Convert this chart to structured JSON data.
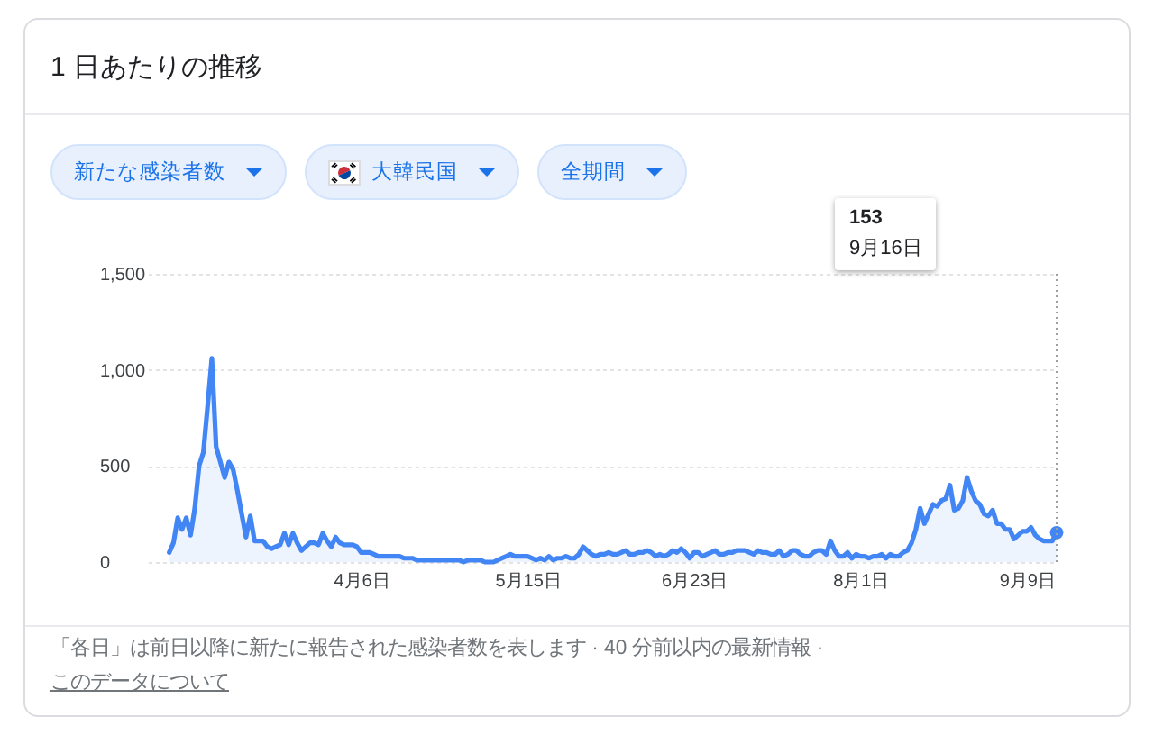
{
  "chart_data": {
    "type": "area",
    "title": "1 日あたりの推移",
    "x": [
      "--02-21",
      "--02-22",
      "--02-23",
      "--02-24",
      "--02-25",
      "--02-26",
      "--02-27",
      "--02-28",
      "--02-29",
      "--03-01",
      "--03-02",
      "--03-03",
      "--03-04",
      "--03-05",
      "--03-06",
      "--03-07",
      "--03-08",
      "--03-09",
      "--03-10",
      "--03-11",
      "--03-12",
      "--03-13",
      "--03-14",
      "--03-15",
      "--03-16",
      "--03-17",
      "--03-18",
      "--03-19",
      "--03-20",
      "--03-21",
      "--03-22",
      "--03-23",
      "--03-24",
      "--03-25",
      "--03-26",
      "--03-27",
      "--03-28",
      "--03-29",
      "--03-30",
      "--03-31",
      "--04-01",
      "--04-02",
      "--04-03",
      "--04-04",
      "--04-05",
      "--04-06",
      "--04-07",
      "--04-08",
      "--04-09",
      "--04-10",
      "--04-11",
      "--04-12",
      "--04-13",
      "--04-14",
      "--04-15",
      "--04-16",
      "--04-17",
      "--04-18",
      "--04-19",
      "--04-20",
      "--04-21",
      "--04-22",
      "--04-23",
      "--04-24",
      "--04-25",
      "--04-26",
      "--04-27",
      "--04-28",
      "--04-29",
      "--04-30",
      "--05-01",
      "--05-02",
      "--05-03",
      "--05-04",
      "--05-05",
      "--05-06",
      "--05-07",
      "--05-08",
      "--05-09",
      "--05-10",
      "--05-11",
      "--05-12",
      "--05-13",
      "--05-14",
      "--05-15",
      "--05-16",
      "--05-17",
      "--05-18",
      "--05-19",
      "--05-20",
      "--05-21",
      "--05-22",
      "--05-23",
      "--05-24",
      "--05-25",
      "--05-26",
      "--05-27",
      "--05-28",
      "--05-29",
      "--05-30",
      "--05-31",
      "--06-01",
      "--06-02",
      "--06-03",
      "--06-04",
      "--06-05",
      "--06-06",
      "--06-07",
      "--06-08",
      "--06-09",
      "--06-10",
      "--06-11",
      "--06-12",
      "--06-13",
      "--06-14",
      "--06-15",
      "--06-16",
      "--06-17",
      "--06-18",
      "--06-19",
      "--06-20",
      "--06-21",
      "--06-22",
      "--06-23",
      "--06-24",
      "--06-25",
      "--06-26",
      "--06-27",
      "--06-28",
      "--06-29",
      "--06-30",
      "--07-01",
      "--07-02",
      "--07-03",
      "--07-04",
      "--07-05",
      "--07-06",
      "--07-07",
      "--07-08",
      "--07-09",
      "--07-10",
      "--07-11",
      "--07-12",
      "--07-13",
      "--07-14",
      "--07-15",
      "--07-16",
      "--07-17",
      "--07-18",
      "--07-19",
      "--07-20",
      "--07-21",
      "--07-22",
      "--07-23",
      "--07-24",
      "--07-25",
      "--07-26",
      "--07-27",
      "--07-28",
      "--07-29",
      "--07-30",
      "--07-31",
      "--08-01",
      "--08-02",
      "--08-03",
      "--08-04",
      "--08-05",
      "--08-06",
      "--08-07",
      "--08-08",
      "--08-09",
      "--08-10",
      "--08-11",
      "--08-12",
      "--08-13",
      "--08-14",
      "--08-15",
      "--08-16",
      "--08-17",
      "--08-18",
      "--08-19",
      "--08-20",
      "--08-21",
      "--08-22",
      "--08-23",
      "--08-24",
      "--08-25",
      "--08-26",
      "--08-27",
      "--08-28",
      "--08-29",
      "--08-30",
      "--08-31",
      "--09-01",
      "--09-02",
      "--09-03",
      "--09-04",
      "--09-05",
      "--09-06",
      "--09-07",
      "--09-08",
      "--09-09",
      "--09-10",
      "--09-11",
      "--09-12",
      "--09-13",
      "--09-14",
      "--09-15",
      "--09-16"
    ],
    "series": [
      {
        "color": "#4285f4",
        "values": [
          50,
          100,
          230,
          170,
          230,
          140,
          280,
          500,
          570,
          810,
          1060,
          600,
          520,
          440,
          520,
          480,
          370,
          250,
          130,
          240,
          110,
          110,
          110,
          80,
          70,
          80,
          90,
          150,
          90,
          150,
          100,
          60,
          80,
          100,
          100,
          90,
          150,
          110,
          80,
          130,
          100,
          90,
          90,
          90,
          80,
          50,
          50,
          50,
          40,
          30,
          30,
          30,
          30,
          30,
          30,
          20,
          20,
          20,
          10,
          10,
          10,
          10,
          10,
          10,
          10,
          10,
          10,
          10,
          10,
          0,
          10,
          10,
          10,
          10,
          0,
          0,
          0,
          10,
          20,
          30,
          40,
          30,
          30,
          30,
          30,
          20,
          10,
          20,
          10,
          30,
          10,
          20,
          20,
          30,
          20,
          20,
          40,
          80,
          60,
          40,
          30,
          40,
          40,
          50,
          40,
          40,
          50,
          60,
          40,
          40,
          50,
          50,
          60,
          50,
          30,
          40,
          30,
          40,
          60,
          50,
          70,
          50,
          20,
          50,
          50,
          30,
          40,
          50,
          60,
          40,
          40,
          50,
          50,
          60,
          60,
          60,
          50,
          40,
          60,
          50,
          50,
          40,
          40,
          60,
          30,
          40,
          60,
          60,
          40,
          30,
          30,
          50,
          60,
          60,
          40,
          110,
          60,
          30,
          30,
          50,
          20,
          40,
          30,
          30,
          20,
          30,
          30,
          40,
          20,
          40,
          30,
          30,
          50,
          60,
          100,
          170,
          280,
          200,
          250,
          300,
          290,
          320,
          330,
          400,
          270,
          280,
          320,
          440,
          370,
          320,
          300,
          250,
          240,
          270,
          200,
          200,
          170,
          170,
          120,
          140,
          160,
          160,
          180,
          140,
          120,
          110,
          110,
          110,
          153
        ]
      },
      {
        "type": "scatter",
        "color": "#4285f4",
        "x": [
          "--09-16"
        ],
        "values": [
          153
        ]
      }
    ],
    "xlim": [
      "--02-16",
      "--09-16"
    ],
    "xticks": [
      {
        "value": "--04-06",
        "label": "4月6日"
      },
      {
        "value": "--05-15",
        "label": "5月15日"
      },
      {
        "value": "--06-23",
        "label": "6月23日"
      },
      {
        "value": "--08-01",
        "label": "8月1日"
      },
      {
        "value": "--09-09",
        "label": "9月9日"
      }
    ],
    "ylim": [
      0,
      1500
    ],
    "yticks": [
      0,
      500,
      {
        "value": 1000,
        "label": "1,000"
      },
      {
        "value": 1500,
        "label": "1,500"
      }
    ],
    "grid": "y",
    "ref_lines": [
      {
        "axis": "x",
        "value": "--09-16",
        "color": "#9aa0a6",
        "line_style": "dotted"
      }
    ],
    "annotations": [
      "新たな感染者数",
      "大韓民国",
      "全期間",
      "153",
      "9月16日",
      "「各日」は前日以降に新たに報告された感染者数を表します · 40 分前以内の最新情報 ·",
      "このデータについて"
    ]
  }
}
